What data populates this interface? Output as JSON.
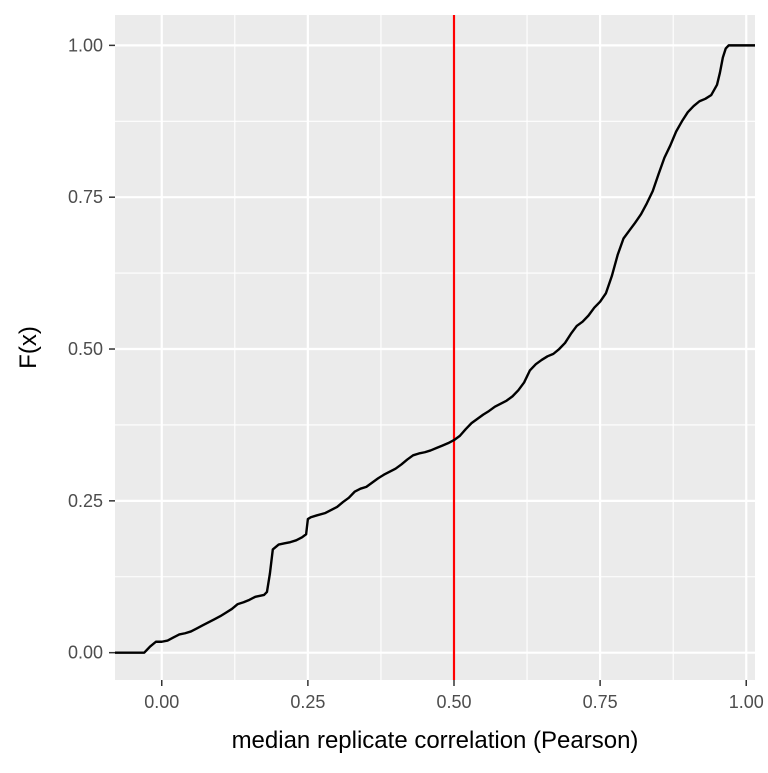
{
  "chart_data": {
    "type": "line",
    "title": "",
    "xlabel": "median replicate correlation (Pearson)",
    "ylabel": "F(x)",
    "xlim": [
      -0.08,
      1.015
    ],
    "ylim": [
      -0.045,
      1.05
    ],
    "x_ticks": [
      0.0,
      0.25,
      0.5,
      0.75,
      1.0
    ],
    "x_tick_labels": [
      "0.00",
      "0.25",
      "0.50",
      "0.75",
      "1.00"
    ],
    "y_ticks": [
      0.0,
      0.25,
      0.5,
      0.75,
      1.0
    ],
    "y_tick_labels": [
      "0.00",
      "0.25",
      "0.50",
      "0.75",
      "1.00"
    ],
    "grid": true,
    "legend": "none",
    "vline": {
      "x": 0.5,
      "color": "#FF0000"
    },
    "series": [
      {
        "color": "#000000",
        "points": [
          [
            -0.08,
            0.0
          ],
          [
            -0.03,
            0.0
          ],
          [
            -0.025,
            0.005
          ],
          [
            -0.02,
            0.01
          ],
          [
            -0.01,
            0.018
          ],
          [
            0.0,
            0.018
          ],
          [
            0.01,
            0.02
          ],
          [
            0.02,
            0.025
          ],
          [
            0.03,
            0.03
          ],
          [
            0.04,
            0.032
          ],
          [
            0.05,
            0.035
          ],
          [
            0.06,
            0.04
          ],
          [
            0.07,
            0.045
          ],
          [
            0.08,
            0.05
          ],
          [
            0.09,
            0.055
          ],
          [
            0.1,
            0.06
          ],
          [
            0.11,
            0.066
          ],
          [
            0.12,
            0.072
          ],
          [
            0.13,
            0.08
          ],
          [
            0.14,
            0.083
          ],
          [
            0.15,
            0.087
          ],
          [
            0.16,
            0.092
          ],
          [
            0.175,
            0.095
          ],
          [
            0.18,
            0.1
          ],
          [
            0.185,
            0.13
          ],
          [
            0.19,
            0.17
          ],
          [
            0.2,
            0.178
          ],
          [
            0.21,
            0.18
          ],
          [
            0.22,
            0.182
          ],
          [
            0.23,
            0.185
          ],
          [
            0.24,
            0.19
          ],
          [
            0.247,
            0.195
          ],
          [
            0.25,
            0.22
          ],
          [
            0.255,
            0.223
          ],
          [
            0.265,
            0.226
          ],
          [
            0.28,
            0.23
          ],
          [
            0.29,
            0.235
          ],
          [
            0.3,
            0.24
          ],
          [
            0.31,
            0.248
          ],
          [
            0.32,
            0.255
          ],
          [
            0.33,
            0.265
          ],
          [
            0.34,
            0.27
          ],
          [
            0.35,
            0.273
          ],
          [
            0.36,
            0.28
          ],
          [
            0.37,
            0.287
          ],
          [
            0.38,
            0.293
          ],
          [
            0.39,
            0.298
          ],
          [
            0.4,
            0.303
          ],
          [
            0.41,
            0.31
          ],
          [
            0.42,
            0.318
          ],
          [
            0.43,
            0.325
          ],
          [
            0.44,
            0.328
          ],
          [
            0.45,
            0.33
          ],
          [
            0.46,
            0.333
          ],
          [
            0.47,
            0.337
          ],
          [
            0.48,
            0.341
          ],
          [
            0.49,
            0.345
          ],
          [
            0.5,
            0.35
          ],
          [
            0.51,
            0.357
          ],
          [
            0.52,
            0.368
          ],
          [
            0.53,
            0.378
          ],
          [
            0.54,
            0.385
          ],
          [
            0.55,
            0.392
          ],
          [
            0.56,
            0.398
          ],
          [
            0.57,
            0.405
          ],
          [
            0.58,
            0.41
          ],
          [
            0.59,
            0.415
          ],
          [
            0.6,
            0.422
          ],
          [
            0.61,
            0.432
          ],
          [
            0.62,
            0.445
          ],
          [
            0.63,
            0.465
          ],
          [
            0.64,
            0.475
          ],
          [
            0.65,
            0.482
          ],
          [
            0.66,
            0.488
          ],
          [
            0.67,
            0.492
          ],
          [
            0.68,
            0.5
          ],
          [
            0.69,
            0.51
          ],
          [
            0.7,
            0.525
          ],
          [
            0.71,
            0.538
          ],
          [
            0.72,
            0.545
          ],
          [
            0.73,
            0.555
          ],
          [
            0.74,
            0.568
          ],
          [
            0.75,
            0.578
          ],
          [
            0.76,
            0.592
          ],
          [
            0.77,
            0.62
          ],
          [
            0.78,
            0.655
          ],
          [
            0.79,
            0.682
          ],
          [
            0.8,
            0.695
          ],
          [
            0.81,
            0.708
          ],
          [
            0.82,
            0.722
          ],
          [
            0.83,
            0.74
          ],
          [
            0.84,
            0.76
          ],
          [
            0.85,
            0.788
          ],
          [
            0.86,
            0.815
          ],
          [
            0.87,
            0.835
          ],
          [
            0.88,
            0.858
          ],
          [
            0.89,
            0.875
          ],
          [
            0.9,
            0.89
          ],
          [
            0.91,
            0.9
          ],
          [
            0.92,
            0.908
          ],
          [
            0.93,
            0.912
          ],
          [
            0.94,
            0.918
          ],
          [
            0.95,
            0.935
          ],
          [
            0.955,
            0.955
          ],
          [
            0.96,
            0.98
          ],
          [
            0.965,
            0.995
          ],
          [
            0.97,
            1.0
          ],
          [
            1.015,
            1.0
          ]
        ]
      }
    ]
  }
}
